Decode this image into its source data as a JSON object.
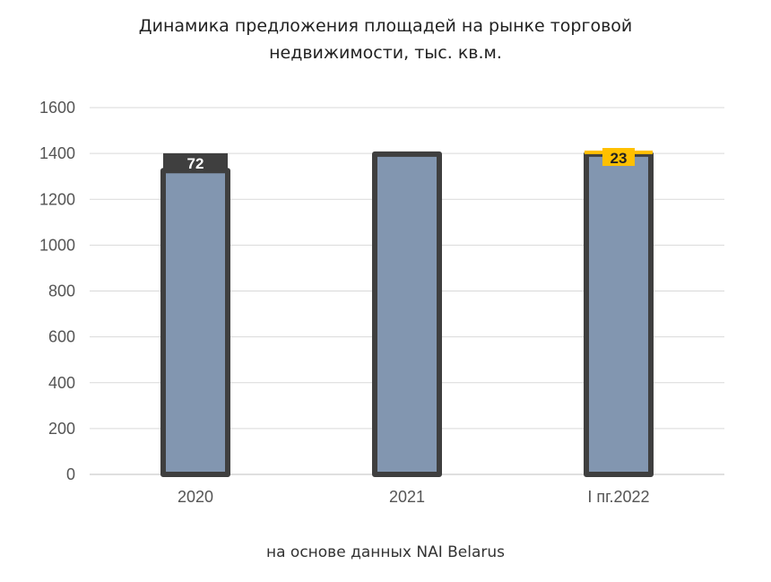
{
  "chart_data": {
    "type": "bar",
    "title": "Динамика предложения площадей на рынке торговой недвижимости, тыс. кв.м.",
    "title_lines": [
      "Динамика предложения площадей на рынке торговой",
      "недвижимости, тыс. кв.м."
    ],
    "categories": [
      "2020",
      "2021",
      "I пг.2022"
    ],
    "series": [
      {
        "values": [
          1325,
          1397,
          1397
        ],
        "color": "#8296b0",
        "outline_color": "#3f3f3f"
      },
      {
        "values": [
          72,
          0,
          23
        ],
        "labels": [
          "72",
          "",
          "23"
        ],
        "colors": [
          "#3f3f3f",
          "#3f3f3f",
          "#ffc000"
        ],
        "label_colors": [
          "#ffffff",
          "#ffffff",
          "#222222"
        ]
      }
    ],
    "ylim": [
      0,
      1600
    ],
    "yticks": [
      0,
      200,
      400,
      600,
      800,
      1000,
      1200,
      1400,
      1600
    ],
    "ytick_labels": [
      "0",
      "200",
      "400",
      "600",
      "800",
      "1000",
      "1200",
      "1400",
      "1600"
    ],
    "grid": true,
    "grid_color": "#d9d9d9",
    "legend": "none"
  },
  "source_note": "на основе данных NAI Belarus"
}
